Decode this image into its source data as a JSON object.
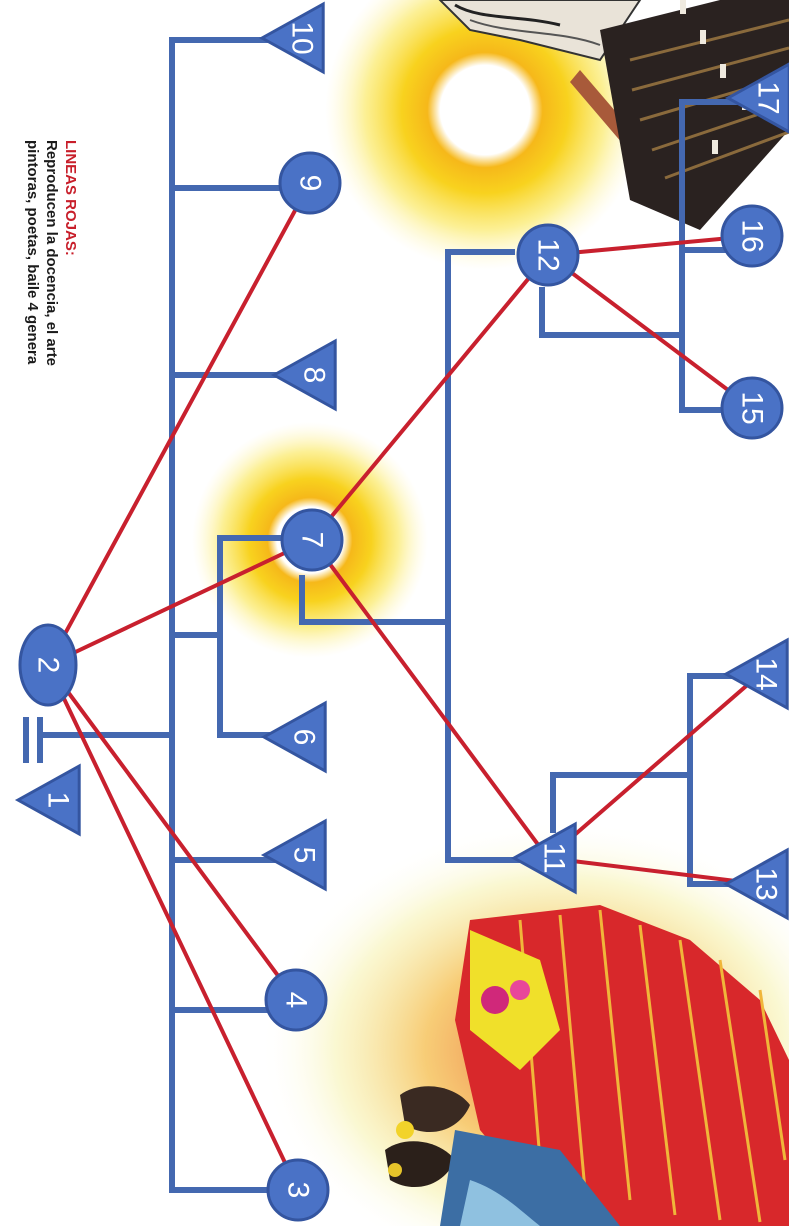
{
  "legend": {
    "title": "LINEAS ROJAS:",
    "line1": "Reproducen la docencia, el arte",
    "line2": "pintoras, poetas, baile 4 genera"
  },
  "colors": {
    "tree_line": "#4468b0",
    "node_fill": "#4a72c6",
    "node_stroke": "#3455a0",
    "red_line": "#c8202e",
    "halo": "#f7d21c"
  },
  "nodes": [
    {
      "id": "1",
      "shape": "triangle",
      "label": "1"
    },
    {
      "id": "2",
      "shape": "circle",
      "label": "2"
    },
    {
      "id": "3",
      "shape": "circle",
      "label": "3"
    },
    {
      "id": "4",
      "shape": "circle",
      "label": "4"
    },
    {
      "id": "5",
      "shape": "triangle",
      "label": "5"
    },
    {
      "id": "6",
      "shape": "triangle",
      "label": "6"
    },
    {
      "id": "7",
      "shape": "circle",
      "label": "7"
    },
    {
      "id": "8",
      "shape": "triangle",
      "label": "8"
    },
    {
      "id": "9",
      "shape": "circle",
      "label": "9"
    },
    {
      "id": "10",
      "shape": "triangle",
      "label": "10"
    },
    {
      "id": "11",
      "shape": "triangle",
      "label": "11"
    },
    {
      "id": "12",
      "shape": "circle",
      "label": "12"
    },
    {
      "id": "13",
      "shape": "triangle",
      "label": "13"
    },
    {
      "id": "14",
      "shape": "triangle",
      "label": "14"
    },
    {
      "id": "15",
      "shape": "circle",
      "label": "15"
    },
    {
      "id": "16",
      "shape": "circle",
      "label": "16"
    },
    {
      "id": "17",
      "shape": "triangle",
      "label": "17"
    }
  ],
  "red_links": [
    [
      "2",
      "3"
    ],
    [
      "2",
      "4"
    ],
    [
      "2",
      "7"
    ],
    [
      "2",
      "9"
    ],
    [
      "7",
      "11"
    ],
    [
      "7",
      "12"
    ],
    [
      "11",
      "13"
    ],
    [
      "11",
      "14"
    ],
    [
      "12",
      "15"
    ],
    [
      "12",
      "16"
    ]
  ]
}
